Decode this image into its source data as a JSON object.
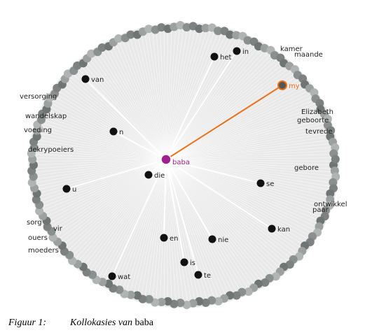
{
  "figure": {
    "center": {
      "label": "baba"
    },
    "highlight": {
      "label": "my"
    },
    "nodes": [
      {
        "label": "die"
      },
      {
        "label": "n"
      },
      {
        "label": "van"
      },
      {
        "label": "u"
      },
      {
        "label": "se"
      },
      {
        "label": "kan"
      },
      {
        "label": "nie"
      },
      {
        "label": "en"
      },
      {
        "label": "is"
      },
      {
        "label": "te"
      },
      {
        "label": "het"
      },
      {
        "label": "in"
      },
      {
        "label": "wat"
      }
    ],
    "outer": [
      {
        "label": "versorging"
      },
      {
        "label": "wandelskap"
      },
      {
        "label": "dekrypoeiers"
      },
      {
        "label": "voeding"
      },
      {
        "label": "ouers"
      },
      {
        "label": "moeders"
      },
      {
        "label": "vir"
      },
      {
        "label": "sorg"
      },
      {
        "label": "gebore"
      },
      {
        "label": "paar"
      },
      {
        "label": "ontwikkel"
      },
      {
        "label": "tevrede"
      },
      {
        "label": "geboorte"
      },
      {
        "label": "Elizabeth"
      },
      {
        "label": "maande"
      },
      {
        "label": "kamer"
      }
    ]
  },
  "caption": {
    "label": "Figuur 1:",
    "italic": "Kollokasies van",
    "word": "baba"
  }
}
